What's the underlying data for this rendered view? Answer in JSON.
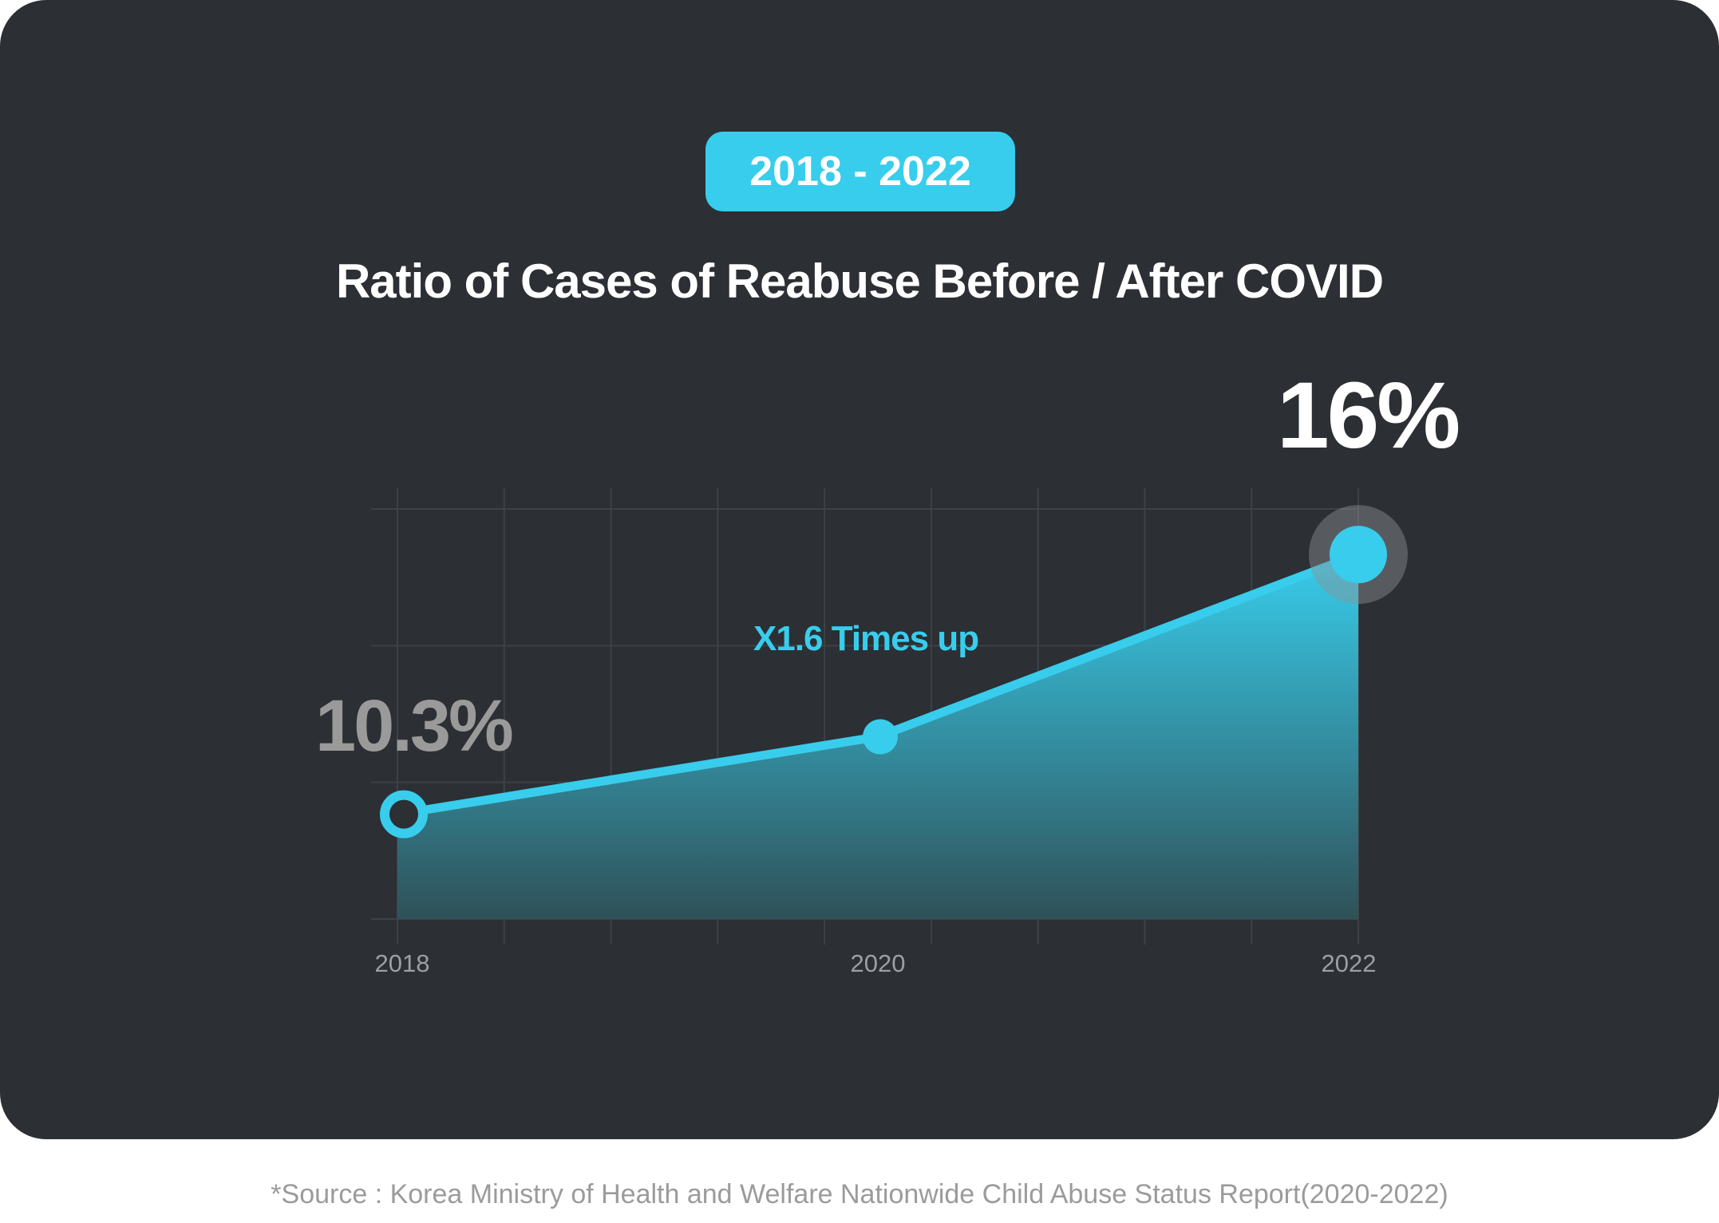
{
  "badge": {
    "label": "2018 - 2022"
  },
  "chart_data": {
    "type": "area",
    "title": "Ratio of Cases of Reabuse Before / After COVID",
    "x": [
      2018,
      2020,
      2022
    ],
    "categories": [
      "2018",
      "2020",
      "2022"
    ],
    "values": [
      10.3,
      12.0,
      16.0
    ],
    "ylim": [
      8,
      17
    ],
    "xlabel": "",
    "ylabel": "",
    "grid": true,
    "value_labels": [
      "10.3%",
      "",
      "16%"
    ],
    "annotation": "X1.6 Times up",
    "colors": {
      "line": "#38cdec",
      "area_top": "#38cdec",
      "area_bottom": "#2f5158"
    }
  },
  "source": "*Source : Korea Ministry of Health and Welfare Nationwide Child Abuse Status Report(2020-2022)"
}
